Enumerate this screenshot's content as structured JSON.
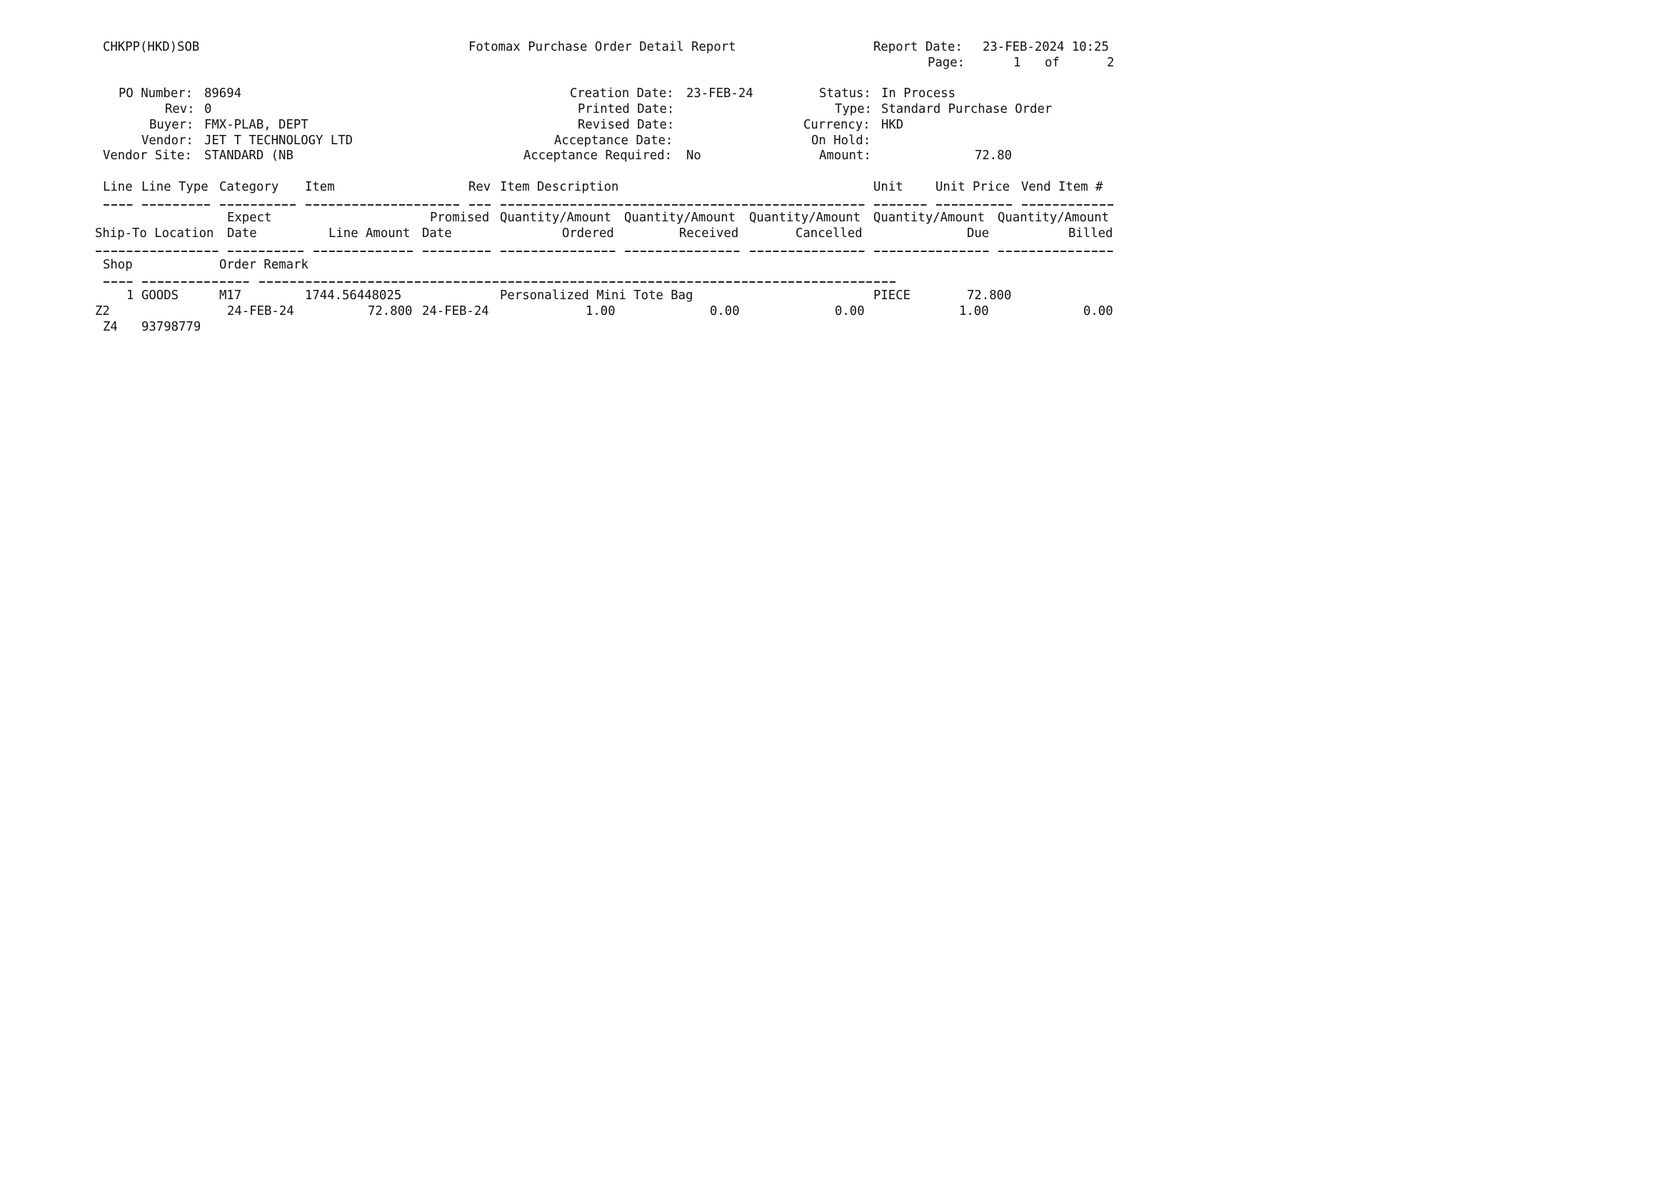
{
  "report": {
    "program_code": "CHKPP(HKD)SOB",
    "title": "Fotomax Purchase Order Detail Report",
    "report_date_label": "Report Date:",
    "report_date": "23-FEB-2024 10:25",
    "page_label": "Page:",
    "page_current": "1",
    "page_of": "of",
    "page_total": "2"
  },
  "po_header": {
    "po_number_label": "PO Number:",
    "po_number": "89694",
    "rev_label": "Rev:",
    "rev": "0",
    "buyer_label": "Buyer:",
    "buyer": "FMX-PLAB, DEPT",
    "vendor_label": "Vendor:",
    "vendor": "JET T TECHNOLOGY LTD",
    "vendor_site_label": "Vendor Site:",
    "vendor_site": "STANDARD (NB",
    "creation_date_label": "Creation Date:",
    "creation_date": "23-FEB-24",
    "printed_date_label": "Printed Date:",
    "printed_date": "",
    "revised_date_label": "Revised Date:",
    "revised_date": "",
    "acceptance_date_label": "Acceptance Date:",
    "acceptance_date": "",
    "acceptance_required_label": "Acceptance Required:",
    "acceptance_required": "No",
    "status_label": "Status:",
    "status": "In Process",
    "type_label": "Type:",
    "type": "Standard Purchase Order",
    "currency_label": "Currency:",
    "currency": "HKD",
    "on_hold_label": "On Hold:",
    "on_hold": "",
    "amount_label": "Amount:",
    "amount": "72.80"
  },
  "columns": {
    "line": "Line",
    "line_type": "Line Type",
    "category": "Category",
    "item": "Item",
    "rev": "Rev",
    "item_description": "Item Description",
    "unit": "Unit",
    "unit_price": "Unit Price",
    "vend_item": "Vend Item #",
    "expect": "Expect",
    "promised": "Promised",
    "qty_amount": "Quantity/Amount",
    "ship_to_location": "Ship-To Location",
    "date": "Date",
    "line_amount": "Line Amount",
    "ordered": "Ordered",
    "received": "Received",
    "cancelled": "Cancelled",
    "due": "Due",
    "billed": "Billed",
    "shop": "Shop",
    "order_remark": "Order Remark"
  },
  "lines": [
    {
      "line": "1",
      "line_type": "GOODS",
      "category": "M17",
      "item": "1744.56448025",
      "rev": "",
      "item_description": "Personalized Mini Tote Bag",
      "unit": "PIECE",
      "unit_price": "72.800",
      "vend_item": "",
      "ship_to_location": "Z2",
      "expect_date": "24-FEB-24",
      "line_amount": "72.800",
      "promised_date": "24-FEB-24",
      "ordered": "1.00",
      "received": "0.00",
      "cancelled": "0.00",
      "due": "1.00",
      "billed": "0.00",
      "shop": "Z4",
      "order_remark": "93798779"
    }
  ]
}
